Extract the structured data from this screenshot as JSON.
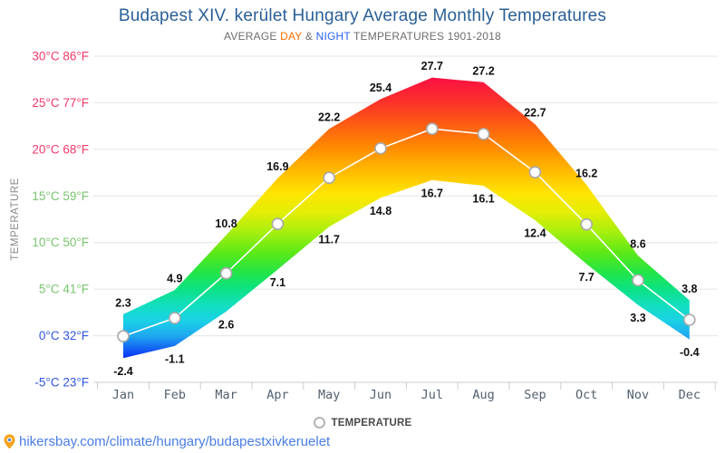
{
  "header": {
    "title": "Budapest XIV. kerület Hungary Average Monthly Temperatures",
    "subtitle": {
      "prefix": "AVERAGE ",
      "day": "DAY",
      "joiner": " & ",
      "night": "NIGHT",
      "suffix": " TEMPERATURES 1901-2018"
    }
  },
  "legend": {
    "label": "TEMPERATURE"
  },
  "footer": {
    "url": "hikersbay.com/climate/hungary/budapestxivkeruelet"
  },
  "colors": {
    "title": "#2a5f95",
    "subtitle": "#6e6e6e",
    "day_accent": "#ff6d00",
    "night_accent": "#2962ff",
    "grid": "#e4e4e4",
    "axis": "#c9ccd1",
    "month_label": "#51606f",
    "value_label": "#111111",
    "avg_line": "#ffffff",
    "marker_stroke": "#a8a8a8",
    "ylabel": "#8a8a8a",
    "url": "#4a7de5",
    "pin": "#f7a41d"
  },
  "chart_data": {
    "type": "area",
    "title": "Budapest XIV. kerület Hungary Average Monthly Temperatures",
    "subtitle": "AVERAGE DAY & NIGHT TEMPERATURES 1901-2018",
    "categories": [
      "Jan",
      "Feb",
      "Mar",
      "Apr",
      "May",
      "Jun",
      "Jul",
      "Aug",
      "Sep",
      "Oct",
      "Nov",
      "Dec"
    ],
    "series": [
      {
        "name": "day",
        "values": [
          2.3,
          4.9,
          10.8,
          16.9,
          22.2,
          25.4,
          27.7,
          27.2,
          22.7,
          16.2,
          8.6,
          3.8
        ]
      },
      {
        "name": "night",
        "values": [
          -2.4,
          -1.1,
          2.6,
          7.1,
          11.7,
          14.8,
          16.7,
          16.1,
          12.4,
          7.7,
          3.3,
          -0.4
        ]
      }
    ],
    "xlabel": "",
    "ylabel": "TEMPERATURE",
    "ylim": [
      -5,
      30
    ],
    "grid": true,
    "legend": "TEMPERATURE",
    "legend_position": "bottom",
    "y_ticks": [
      {
        "t": 30,
        "label": "30°C 86°F",
        "color": "#f23a68"
      },
      {
        "t": 25,
        "label": "25°C 77°F",
        "color": "#f23a68"
      },
      {
        "t": 20,
        "label": "20°C 68°F",
        "color": "#f23a68"
      },
      {
        "t": 15,
        "label": "15°C 59°F",
        "color": "#77c56d"
      },
      {
        "t": 10,
        "label": "10°C 50°F",
        "color": "#77c56d"
      },
      {
        "t": 5,
        "label": "5°C 41°F",
        "color": "#77c56d"
      },
      {
        "t": 0,
        "label": "0°C 32°F",
        "color": "#2f55e0"
      },
      {
        "t": -5,
        "label": "-5°C 23°F",
        "color": "#2f55e0"
      }
    ],
    "gradient_stops": [
      {
        "offset": 0.0,
        "color": "#f40a4f"
      },
      {
        "offset": 0.07,
        "color": "#fa1243"
      },
      {
        "offset": 0.14,
        "color": "#fb3129"
      },
      {
        "offset": 0.21,
        "color": "#fd5d13"
      },
      {
        "offset": 0.28,
        "color": "#fe8b00"
      },
      {
        "offset": 0.35,
        "color": "#ffb900"
      },
      {
        "offset": 0.42,
        "color": "#ffe400"
      },
      {
        "offset": 0.48,
        "color": "#e2ee06"
      },
      {
        "offset": 0.54,
        "color": "#a6ef0e"
      },
      {
        "offset": 0.6,
        "color": "#5fe916"
      },
      {
        "offset": 0.66,
        "color": "#24e544"
      },
      {
        "offset": 0.71,
        "color": "#0de27f"
      },
      {
        "offset": 0.76,
        "color": "#12dfbb"
      },
      {
        "offset": 0.81,
        "color": "#1ad2e6"
      },
      {
        "offset": 0.86,
        "color": "#1fa5f0"
      },
      {
        "offset": 0.92,
        "color": "#0c38f5"
      },
      {
        "offset": 1.0,
        "color": "#0a13da"
      }
    ]
  }
}
